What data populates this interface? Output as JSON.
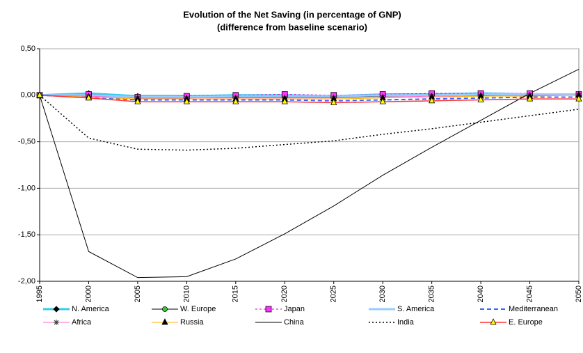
{
  "chart_data": {
    "type": "line",
    "title": "Evolution of the Net Saving (in percentage of GNP)",
    "subtitle": "(difference from baseline scenario)",
    "x": [
      1995,
      2000,
      2005,
      2010,
      2015,
      2020,
      2025,
      2030,
      2035,
      2040,
      2045,
      2050
    ],
    "xlim": [
      1995,
      2050
    ],
    "xticks": [
      1995,
      2000,
      2005,
      2010,
      2015,
      2020,
      2025,
      2030,
      2035,
      2040,
      2045,
      2050
    ],
    "ylim": [
      -2,
      0.5
    ],
    "yticks": [
      {
        "value": 0.5,
        "label": "0,50"
      },
      {
        "value": 0,
        "label": "0,00"
      },
      {
        "value": -0.5,
        "label": "-0,50"
      },
      {
        "value": -1,
        "label": "-1,00"
      },
      {
        "value": -1.5,
        "label": "-1,50"
      },
      {
        "value": -2,
        "label": "-2,00"
      }
    ],
    "grid": true,
    "legend": "bottom",
    "series": [
      {
        "name": "N. America",
        "color": "#33ccee",
        "width": 3,
        "dash": "none",
        "marker": "diamond",
        "marker_color": "#000000",
        "values": [
          0,
          0.02,
          -0.01,
          -0.01,
          0,
          0,
          -0.01,
          0.01,
          0.01,
          0.02,
          0.01,
          0.01
        ]
      },
      {
        "name": "W. Europe",
        "color": "#000000",
        "width": 1,
        "dash": "none",
        "marker": "circle",
        "marker_color": "#33cc33",
        "values": [
          0,
          0,
          -0.03,
          -0.03,
          -0.02,
          -0.02,
          -0.02,
          -0.01,
          0,
          0,
          0,
          0
        ]
      },
      {
        "name": "Japan",
        "color": "#cc00cc",
        "width": 1,
        "dash": "3,3",
        "marker": "square",
        "marker_color": "#ff33ff",
        "values": [
          0,
          0.01,
          -0.02,
          -0.01,
          0,
          0.01,
          0,
          0.01,
          0.02,
          0.02,
          0.02,
          0.01
        ]
      },
      {
        "name": "S. America",
        "color": "#99ccff",
        "width": 3,
        "dash": "none",
        "marker": "none",
        "marker_color": "#99ccff",
        "values": [
          0,
          0,
          -0.02,
          -0.02,
          -0.01,
          -0.01,
          -0.01,
          0,
          0,
          0.01,
          0.01,
          0.01
        ]
      },
      {
        "name": "Mediterranean",
        "color": "#3366ff",
        "width": 2,
        "dash": "6,4",
        "marker": "none",
        "marker_color": "#3366ff",
        "values": [
          0,
          -0.02,
          -0.05,
          -0.05,
          -0.05,
          -0.05,
          -0.06,
          -0.05,
          -0.04,
          -0.03,
          -0.02,
          -0.02
        ]
      },
      {
        "name": "Africa",
        "color": "#ff66cc",
        "width": 1,
        "dash": "none",
        "marker": "star",
        "marker_color": "#333333",
        "values": [
          0,
          -0.01,
          -0.03,
          -0.03,
          -0.03,
          -0.03,
          -0.03,
          -0.02,
          -0.01,
          -0.01,
          0,
          0
        ]
      },
      {
        "name": "Russia",
        "color": "#ffb400",
        "width": 1,
        "dash": "none",
        "marker": "triangle",
        "marker_color": "#000000",
        "values": [
          0,
          -0.02,
          -0.04,
          -0.04,
          -0.04,
          -0.04,
          -0.04,
          -0.03,
          -0.02,
          -0.01,
          -0.01,
          0
        ]
      },
      {
        "name": "China",
        "color": "#000000",
        "width": 1,
        "dash": "none",
        "marker": "none",
        "marker_color": "#000000",
        "values": [
          0,
          -1.68,
          -1.96,
          -1.95,
          -1.76,
          -1.49,
          -1.19,
          -0.86,
          -0.56,
          -0.27,
          0.02,
          0.28
        ]
      },
      {
        "name": "India",
        "color": "#000000",
        "width": 1.5,
        "dash": "2,3",
        "marker": "none",
        "marker_color": "#000000",
        "values": [
          0,
          -0.46,
          -0.58,
          -0.59,
          -0.57,
          -0.53,
          -0.49,
          -0.42,
          -0.36,
          -0.29,
          -0.22,
          -0.15
        ]
      },
      {
        "name": "E. Europe",
        "color": "#ff3333",
        "width": 1.5,
        "dash": "none",
        "marker": "triangle",
        "marker_color": "#ffff00",
        "values": [
          0,
          -0.03,
          -0.07,
          -0.07,
          -0.07,
          -0.07,
          -0.08,
          -0.07,
          -0.06,
          -0.05,
          -0.04,
          -0.04
        ]
      }
    ]
  }
}
